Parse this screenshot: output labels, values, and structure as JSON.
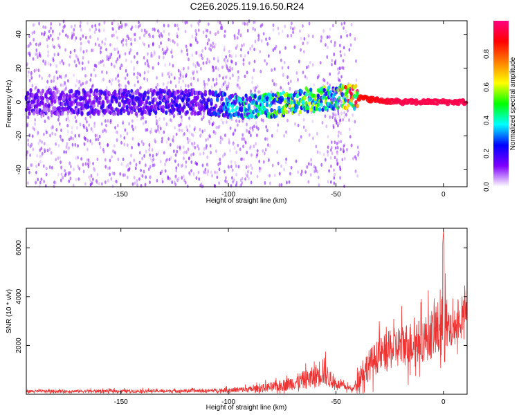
{
  "title": "C2E6.2025.119.16.50.R24",
  "chart_data": [
    {
      "type": "heatmap",
      "xlabel": "Height of straight line (km)",
      "ylabel": "Frequency (Hz)",
      "xlim": [
        -194,
        11
      ],
      "ylim": [
        -50,
        48
      ],
      "xticks": [
        -150,
        -100,
        -50,
        0
      ],
      "yticks": [
        -40,
        -20,
        0,
        20,
        40
      ],
      "ridge": [
        {
          "x": -194,
          "f": 0,
          "amp": 0.15
        },
        {
          "x": -110,
          "f": 0,
          "amp": 0.2
        },
        {
          "x": -95,
          "f": -3,
          "amp": 0.35
        },
        {
          "x": -80,
          "f": -2,
          "amp": 0.45
        },
        {
          "x": -65,
          "f": 1,
          "amp": 0.5
        },
        {
          "x": -50,
          "f": 3,
          "amp": 0.45
        },
        {
          "x": -42,
          "f": 3,
          "amp": 0.85
        },
        {
          "x": -30,
          "f": 1,
          "amp": 0.9
        },
        {
          "x": -20,
          "f": 0,
          "amp": 0.95
        },
        {
          "x": 11,
          "f": 0,
          "amp": 0.95
        }
      ],
      "colorbar": {
        "label": "Normalized spectral amplitude",
        "range": [
          0,
          1
        ],
        "ticks": [
          "0.0",
          "0.2",
          "0.4",
          "0.6",
          "0.8"
        ],
        "colors": [
          "#ffffff",
          "#8000ff",
          "#0000ff",
          "#00ffff",
          "#00ff00",
          "#ffff00",
          "#ff8000",
          "#ff0000",
          "#ff0080"
        ]
      }
    },
    {
      "type": "line",
      "xlabel": "Height of straight line (km)",
      "ylabel": "SNR (10 * v/v)",
      "xlim": [
        -194,
        11
      ],
      "ylim": [
        0,
        6800
      ],
      "xticks": [
        -150,
        -100,
        -50,
        0
      ],
      "yticks": [
        2000,
        4000,
        6000
      ],
      "color": "#ee3333",
      "envelope": [
        {
          "x": -194,
          "base": 120,
          "amp": 120
        },
        {
          "x": -110,
          "base": 140,
          "amp": 140
        },
        {
          "x": -90,
          "base": 200,
          "amp": 250
        },
        {
          "x": -75,
          "base": 350,
          "amp": 450
        },
        {
          "x": -60,
          "base": 700,
          "amp": 900
        },
        {
          "x": -56,
          "base": 1000,
          "amp": 1300
        },
        {
          "x": -52,
          "base": 500,
          "amp": 500
        },
        {
          "x": -42,
          "base": 200,
          "amp": 150
        },
        {
          "x": -38,
          "base": 900,
          "amp": 1200
        },
        {
          "x": -30,
          "base": 1600,
          "amp": 1400
        },
        {
          "x": -20,
          "base": 2000,
          "amp": 1800
        },
        {
          "x": -10,
          "base": 2200,
          "amp": 1800
        },
        {
          "x": -3,
          "base": 2600,
          "amp": 2200
        },
        {
          "x": 0,
          "base": 2800,
          "amp": 3800
        },
        {
          "x": 3,
          "base": 2500,
          "amp": 1500
        },
        {
          "x": 11,
          "base": 3400,
          "amp": 1300
        }
      ]
    }
  ]
}
